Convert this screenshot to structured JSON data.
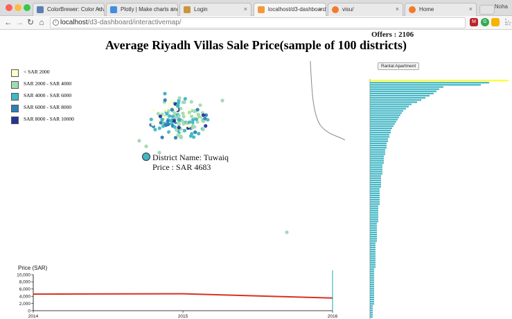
{
  "browser": {
    "tabs": [
      {
        "label": "ColorBrewer: Color Adv",
        "active": false,
        "favicon_color": "#5b7fb5"
      },
      {
        "label": "Plotly | Make charts and",
        "active": false,
        "favicon_color": "#3f8ee0"
      },
      {
        "label": "Login",
        "active": false,
        "favicon_color": "#c7963f"
      },
      {
        "label": "localhost/d3-dashboard/",
        "active": true,
        "favicon_color": "#f39a3f"
      },
      {
        "label": "visu/",
        "active": false,
        "favicon_color": "#f27a2b"
      },
      {
        "label": "Home",
        "active": false,
        "favicon_color": "#f27a2b"
      }
    ],
    "tab_close_glyph": "×",
    "user": "Noha",
    "url_host": "localhost",
    "url_path": "/d3-dashboard/interactivemap/",
    "info_glyph": "i",
    "star_glyph": "☆",
    "nav": {
      "back": "←",
      "forward": "→",
      "reload": "↻",
      "home": "⌂"
    },
    "extensions": [
      {
        "label": "M",
        "color": "#b8262b"
      },
      {
        "label": "G",
        "color": "#34a853"
      },
      {
        "label": "",
        "color": "#f4b400"
      },
      {
        "label": "⋮",
        "color": "#888888"
      }
    ]
  },
  "page": {
    "offers": "Offers : 2106",
    "title": "Average Riyadh Villas Sale Price(sample of 100 districts)",
    "rental_button": "Rantal Apartment",
    "legend": [
      {
        "label": "< SAR 2000",
        "color": "#ffffcc"
      },
      {
        "label": "SAR 2000 - SAR 4000",
        "color": "#a1dab4"
      },
      {
        "label": "SAR 4000 - SAR 6000",
        "color": "#41b6c4"
      },
      {
        "label": "SAR 6000 - SAR 8000",
        "color": "#2c7fb8"
      },
      {
        "label": "SAR 8000 - SAR 10000",
        "color": "#253494"
      }
    ],
    "tooltip": {
      "district": "District Name: Tuwaiq",
      "price": "Price : SAR 4683",
      "color": "#41b6c4"
    },
    "price_axis_label": "Price (SAR)"
  },
  "chart_data": [
    {
      "type": "line",
      "ylabel": "Price (SAR)",
      "x": [
        "2014",
        "2015",
        "2016"
      ],
      "x_ticks": [
        "2014",
        "2015",
        "2016"
      ],
      "y_ticks": [
        "0",
        "2,000",
        "4,000",
        "6,000",
        "8,000",
        "10,000"
      ],
      "ylim": [
        0,
        10000
      ],
      "series": [
        {
          "values": [
            4600,
            4700,
            3500
          ],
          "color": "#d7301f"
        }
      ],
      "marker_x": "2016",
      "marker_color": "#41b6c4"
    },
    {
      "type": "bar",
      "orientation": "horizontal",
      "highlight_color": "#ffff33",
      "bar_color": "#41b6c4",
      "values": [
        100,
        86,
        80,
        53,
        50,
        48,
        46,
        43,
        40,
        37,
        34,
        30,
        28,
        26,
        24,
        23,
        22,
        21,
        20,
        19,
        18,
        17,
        16,
        15,
        15,
        14,
        14,
        13,
        13,
        12,
        12,
        12,
        11,
        11,
        11,
        10,
        10,
        10,
        10,
        9,
        9,
        9,
        9,
        9,
        8,
        8,
        8,
        8,
        8,
        8,
        7,
        7,
        7,
        7,
        7,
        7,
        7,
        7,
        6,
        6,
        6,
        6,
        6,
        6,
        6,
        6,
        5,
        5,
        5,
        5,
        5,
        5,
        5,
        5,
        5,
        4,
        4,
        4,
        4,
        4,
        4,
        4,
        4,
        4,
        4,
        4,
        4,
        3,
        3,
        3,
        3,
        3,
        3,
        3,
        3,
        3,
        3,
        3,
        3,
        3,
        3,
        3,
        3,
        3,
        2,
        2,
        2,
        2,
        2,
        2
      ]
    }
  ]
}
